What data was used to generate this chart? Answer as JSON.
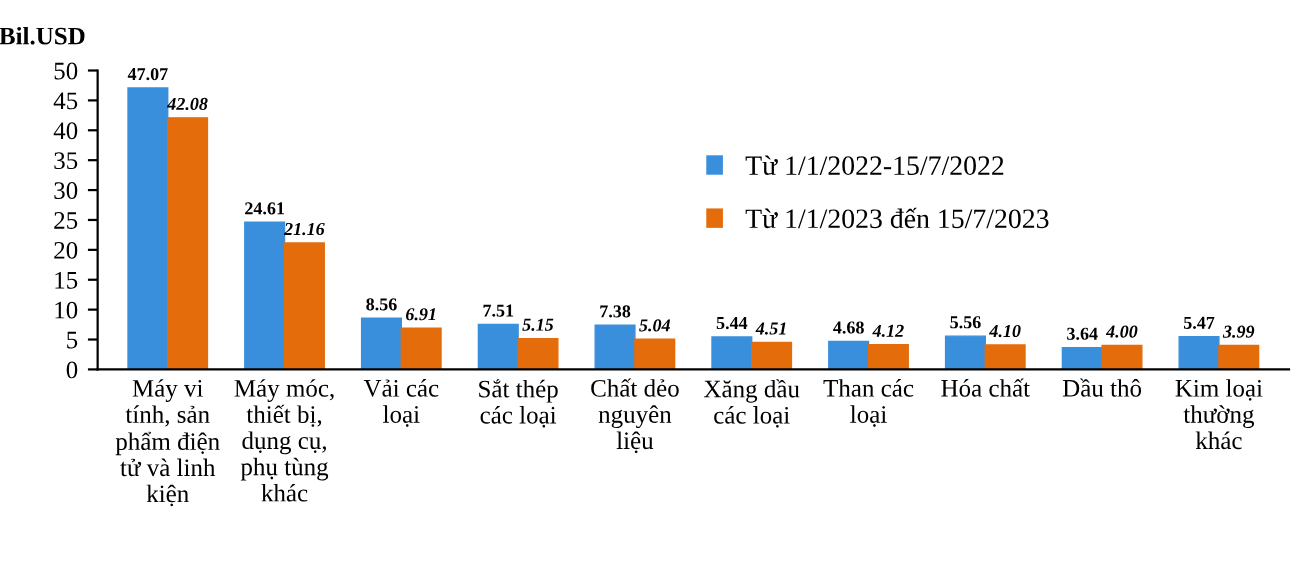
{
  "chart_data": {
    "type": "bar",
    "ylabel": "Bil.USD",
    "categories": [
      "Máy vi tính, sản phẩm điện tử và linh kiện",
      "Máy móc, thiết bị, dụng cụ, phụ tùng khác",
      "Vải các loại",
      "Sắt thép các loại",
      "Chất dẻo nguyên liệu",
      "Xăng dầu các loại",
      "Than các loại",
      "Hóa chất",
      "Dầu thô",
      "Kim loại thường khác"
    ],
    "series": [
      {
        "name": "Từ 1/1/2022-15/7/2022",
        "color": "#3a8fdc",
        "values": [
          47.07,
          24.61,
          8.56,
          7.51,
          7.38,
          5.44,
          4.68,
          5.56,
          3.64,
          5.47
        ],
        "value_labels": [
          "47.07",
          "24.61",
          "8.56",
          "7.51",
          "7.38",
          "5.44",
          "4.68",
          "5.56",
          "3.64",
          "5.47"
        ]
      },
      {
        "name": "Từ 1/1/2023 đến 15/7/2023",
        "color": "#e46c0a",
        "values": [
          42.08,
          21.16,
          6.91,
          5.15,
          5.04,
          4.51,
          4.12,
          4.1,
          4.0,
          3.99
        ],
        "value_labels": [
          "42.08",
          "21.16",
          "6.91",
          "5.15",
          "5.04",
          "4.51",
          "4.12",
          "4.10",
          "4.00",
          "3.99"
        ]
      }
    ],
    "ylim": [
      0,
      50
    ],
    "yticks": [
      0,
      5,
      10,
      15,
      20,
      25,
      30,
      35,
      40,
      45,
      50
    ],
    "grid": false,
    "legend": "top right"
  }
}
